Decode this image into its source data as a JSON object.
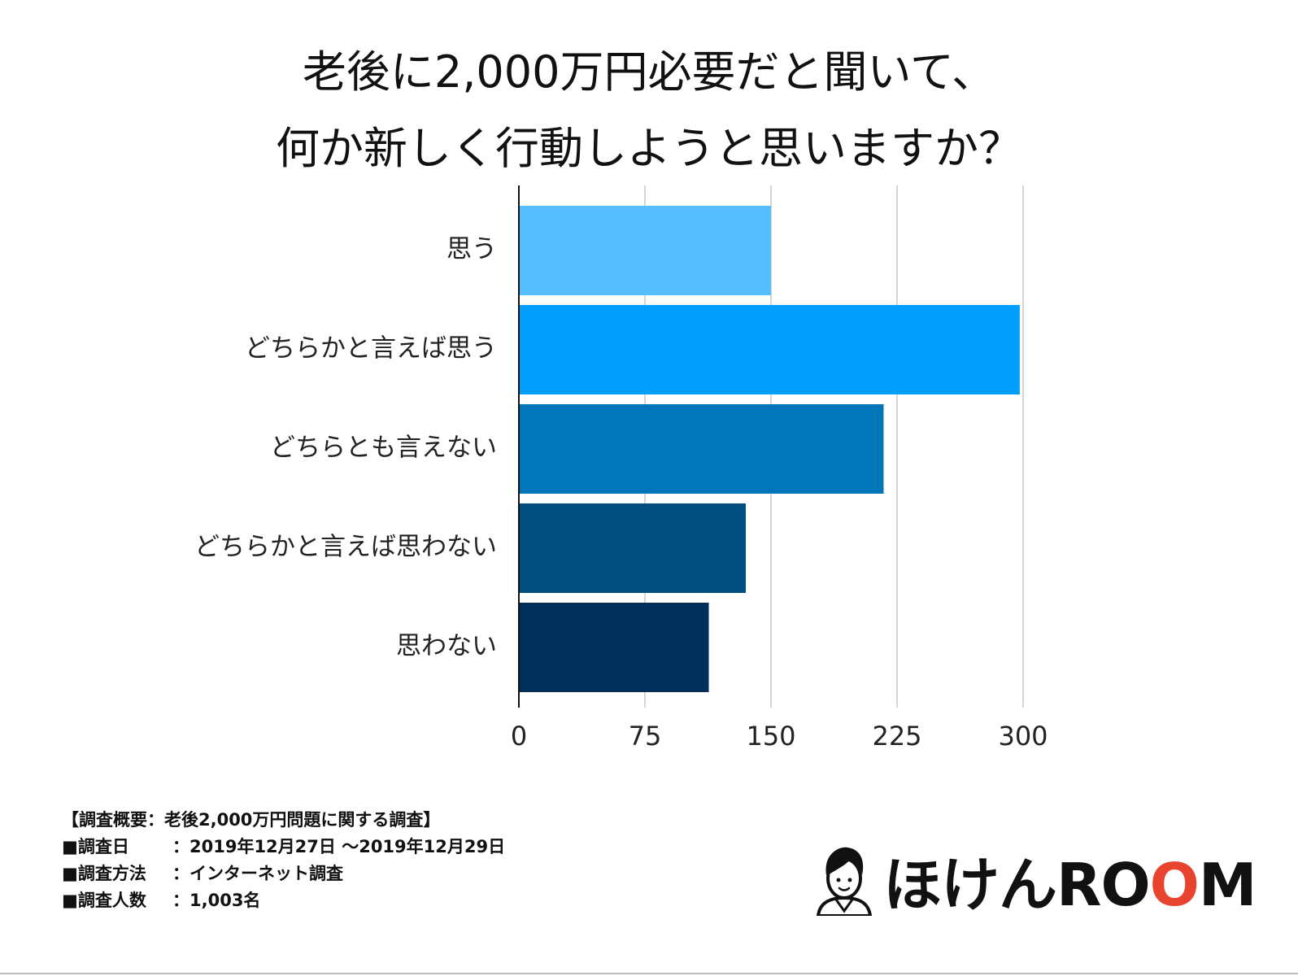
{
  "title_lines": [
    "老後に2,000万円必要だと聞いて、",
    "何か新しく行動しようと思いますか？"
  ],
  "chart_data": {
    "type": "bar",
    "orientation": "horizontal",
    "categories": [
      "思う",
      "どちらかと言えば思う",
      "どちらとも言えない",
      "どちらかと言えば思わない",
      "思わない"
    ],
    "values": [
      150,
      298,
      217,
      135,
      113
    ],
    "colors": [
      "#57BEFD",
      "#049EFF",
      "#0076BA",
      "#004D80",
      "#003059"
    ],
    "xlim": [
      0,
      300
    ],
    "xticks": [
      "0",
      "75",
      "150",
      "225",
      "300"
    ],
    "grid": true
  },
  "survey": {
    "heading": "【調査概要：老後2,000万円問題に関する調査】",
    "rows": [
      {
        "label": "■調査日",
        "value": "：2019年12月27日 〜2019年12月29日"
      },
      {
        "label": "■調査方法",
        "value": "：インターネット調査"
      },
      {
        "label": "■調査人数",
        "value": "：1,003名"
      }
    ]
  },
  "logo": {
    "text_main": "ほけんRO",
    "text_o": "O",
    "text_end": "M",
    "accent": "#E8432F"
  }
}
